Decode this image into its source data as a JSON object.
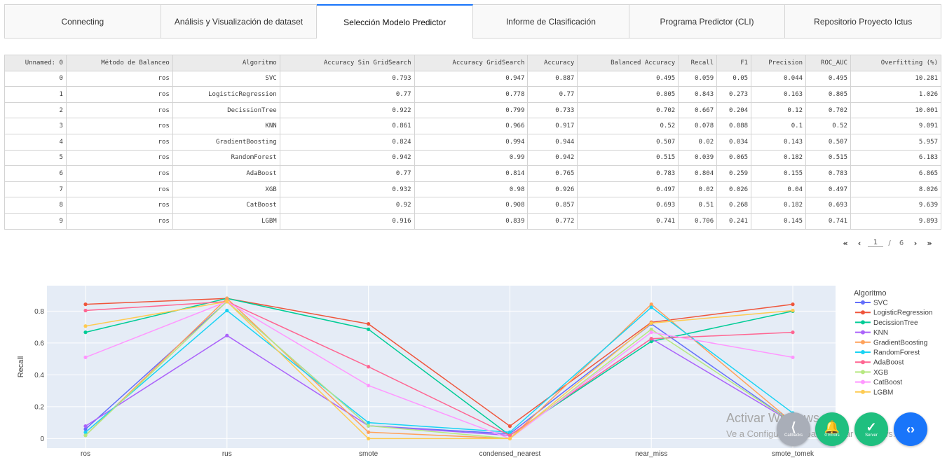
{
  "tabs": [
    {
      "label": "Connecting"
    },
    {
      "label": "Análisis y Visualización de dataset"
    },
    {
      "label": "Selección Modelo Predictor"
    },
    {
      "label": "Informe de Clasificación"
    },
    {
      "label": "Programa Predictor (CLI)"
    },
    {
      "label": "Repositorio Proyecto Ictus"
    }
  ],
  "active_tab": 2,
  "table": {
    "headers": [
      "Unnamed: 0",
      "Método de Balanceo",
      "Algoritmo",
      "Accuracy Sin GridSearch",
      "Accuracy GridSearch",
      "Accuracy",
      "Balanced Accuracy",
      "Recall",
      "F1",
      "Precision",
      "ROC_AUC",
      "Overfitting (%)"
    ],
    "rows": [
      [
        "0",
        "ros",
        "SVC",
        "0.793",
        "0.947",
        "0.887",
        "0.495",
        "0.059",
        "0.05",
        "0.044",
        "0.495",
        "10.281"
      ],
      [
        "1",
        "ros",
        "LogisticRegression",
        "0.77",
        "0.778",
        "0.77",
        "0.805",
        "0.843",
        "0.273",
        "0.163",
        "0.805",
        "1.026"
      ],
      [
        "2",
        "ros",
        "DecissionTree",
        "0.922",
        "0.799",
        "0.733",
        "0.702",
        "0.667",
        "0.204",
        "0.12",
        "0.702",
        "10.001"
      ],
      [
        "3",
        "ros",
        "KNN",
        "0.861",
        "0.966",
        "0.917",
        "0.52",
        "0.078",
        "0.088",
        "0.1",
        "0.52",
        "9.091"
      ],
      [
        "4",
        "ros",
        "GradientBoosting",
        "0.824",
        "0.994",
        "0.944",
        "0.507",
        "0.02",
        "0.034",
        "0.143",
        "0.507",
        "5.957"
      ],
      [
        "5",
        "ros",
        "RandomForest",
        "0.942",
        "0.99",
        "0.942",
        "0.515",
        "0.039",
        "0.065",
        "0.182",
        "0.515",
        "6.183"
      ],
      [
        "6",
        "ros",
        "AdaBoost",
        "0.77",
        "0.814",
        "0.765",
        "0.783",
        "0.804",
        "0.259",
        "0.155",
        "0.783",
        "6.865"
      ],
      [
        "7",
        "ros",
        "XGB",
        "0.932",
        "0.98",
        "0.926",
        "0.497",
        "0.02",
        "0.026",
        "0.04",
        "0.497",
        "8.026"
      ],
      [
        "8",
        "ros",
        "CatBoost",
        "0.92",
        "0.908",
        "0.857",
        "0.693",
        "0.51",
        "0.268",
        "0.182",
        "0.693",
        "9.639"
      ],
      [
        "9",
        "ros",
        "LGBM",
        "0.916",
        "0.839",
        "0.772",
        "0.741",
        "0.706",
        "0.241",
        "0.145",
        "0.741",
        "9.893"
      ]
    ]
  },
  "pagination": {
    "first": "«",
    "prev": "‹",
    "current": "1",
    "separator": "/",
    "total": "6",
    "next": "›",
    "last": "»"
  },
  "chart_data": {
    "type": "line",
    "ylabel": "Recall",
    "xlabel": "",
    "legend_title": "Algoritmo",
    "legend_position": "right",
    "ylim": [
      -0.06,
      0.96
    ],
    "yticks": [
      0,
      0.2,
      0.4,
      0.6,
      0.8
    ],
    "ytick_labels": [
      "0",
      "0.2",
      "0.4",
      "0.6",
      "0.8"
    ],
    "grid": true,
    "plot_bg": "#E5ECF6",
    "categories": [
      "ros",
      "rus",
      "smote",
      "condensed_nearest",
      "near_miss",
      "smote_tomek"
    ],
    "series": [
      {
        "name": "SVC",
        "color": "#636EFA",
        "values": [
          0.059,
          0.86,
          0.08,
          0.03,
          0.72,
          0.1
        ]
      },
      {
        "name": "LogisticRegression",
        "color": "#EF553B",
        "values": [
          0.843,
          0.88,
          0.72,
          0.078,
          0.73,
          0.843
        ]
      },
      {
        "name": "DecissionTree",
        "color": "#00CC96",
        "values": [
          0.667,
          0.88,
          0.686,
          0.02,
          0.61,
          0.8
        ]
      },
      {
        "name": "KNN",
        "color": "#AB63FA",
        "values": [
          0.078,
          0.647,
          0.08,
          0.02,
          0.627,
          0.1
        ]
      },
      {
        "name": "GradientBoosting",
        "color": "#FFA15A",
        "values": [
          0.02,
          0.88,
          0.04,
          0.0,
          0.843,
          0.1
        ]
      },
      {
        "name": "RandomForest",
        "color": "#19D3F3",
        "values": [
          0.039,
          0.804,
          0.1,
          0.04,
          0.824,
          0.16
        ]
      },
      {
        "name": "AdaBoost",
        "color": "#FF6692",
        "values": [
          0.804,
          0.86,
          0.451,
          0.02,
          0.627,
          0.667
        ]
      },
      {
        "name": "XGB",
        "color": "#B6E880",
        "values": [
          0.02,
          0.86,
          0.08,
          0.0,
          0.686,
          0.1
        ]
      },
      {
        "name": "CatBoost",
        "color": "#FF97FF",
        "values": [
          0.51,
          0.86,
          0.333,
          0.0,
          0.667,
          0.51
        ]
      },
      {
        "name": "LGBM",
        "color": "#FECB52",
        "values": [
          0.706,
          0.86,
          0.0,
          0.0,
          0.725,
          0.804
        ]
      }
    ]
  },
  "watermark": {
    "line1": "Activar Windows",
    "line2": "Ve a Configuración para activar Windows."
  },
  "fabs": [
    {
      "label": "Callbacks",
      "icon": "share-icon",
      "color": "#a9aeb8"
    },
    {
      "label": "0 Errors",
      "icon": "bell-icon",
      "color": "#1fbf7f"
    },
    {
      "label": "Server",
      "icon": "check-icon",
      "color": "#1fbf7f"
    },
    {
      "label": "",
      "icon": "code-icon",
      "color": "#1975FA"
    }
  ]
}
